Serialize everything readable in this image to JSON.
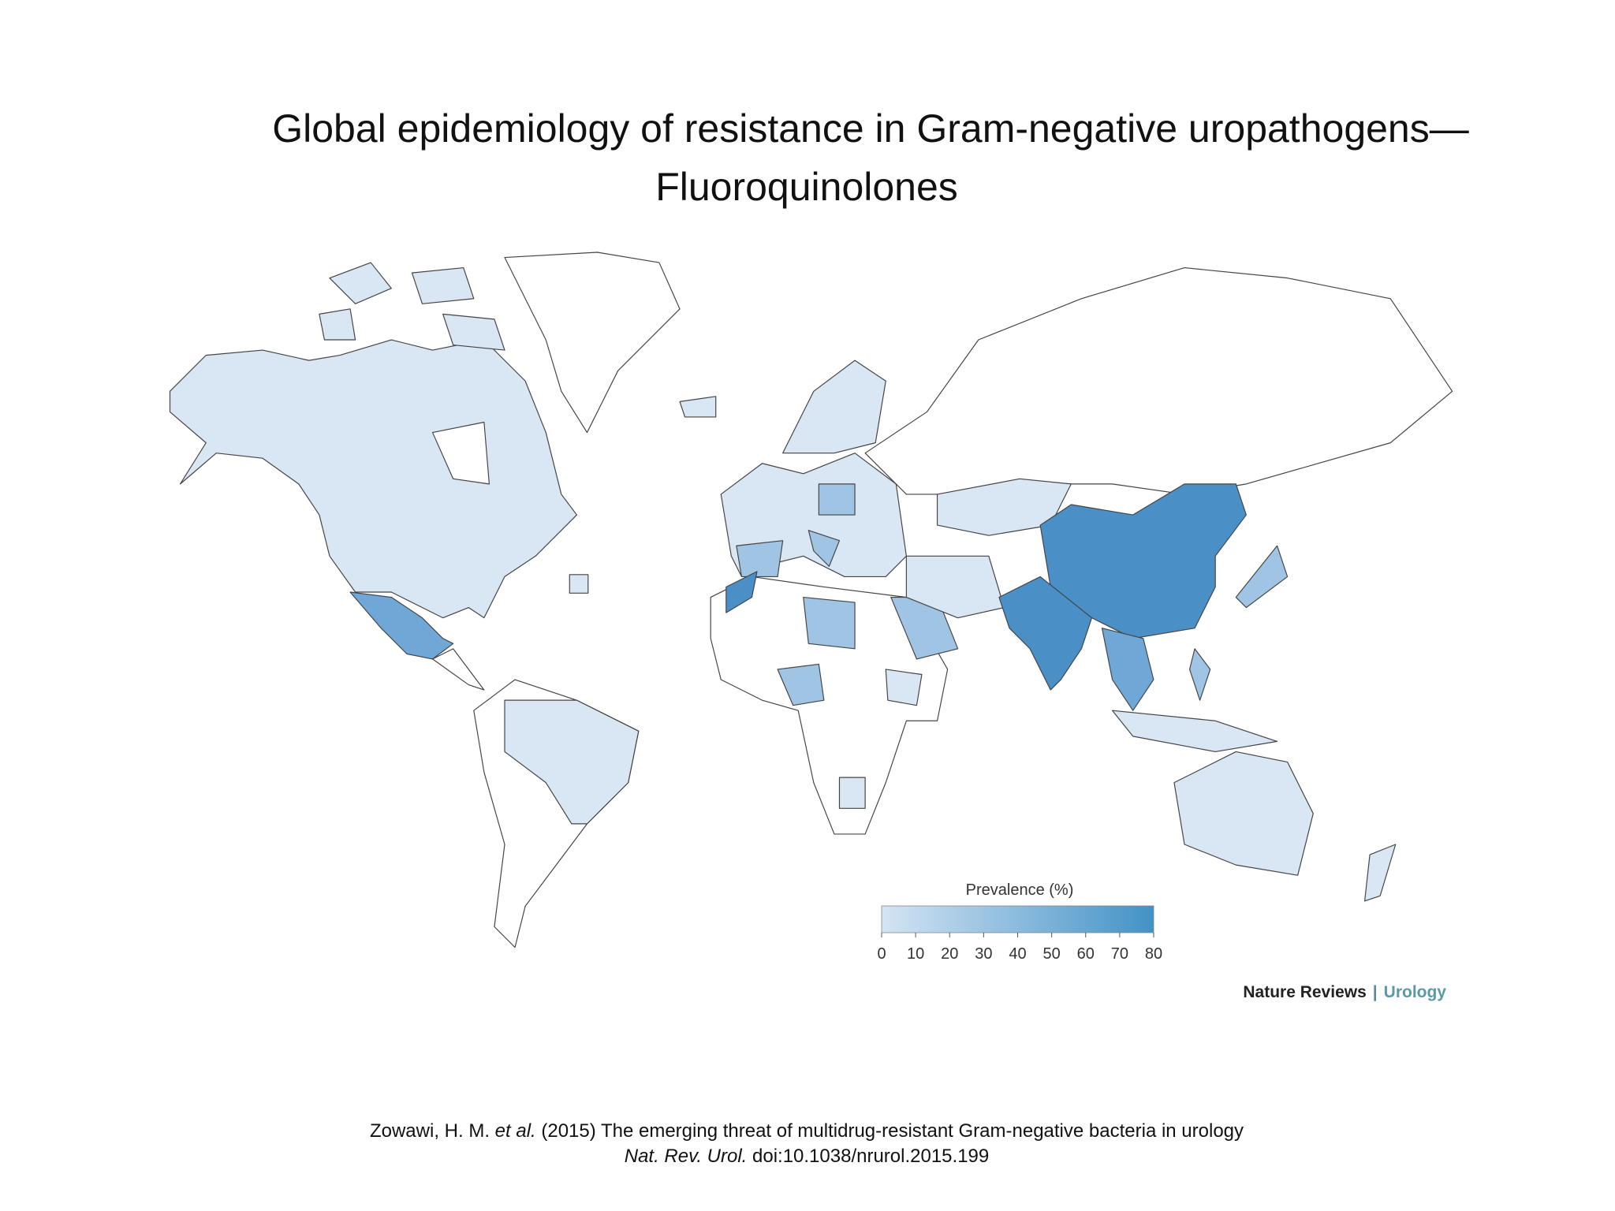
{
  "title": [
    "Global epidemiology of resistance in Gram-negative uropathogens—",
    "Fluoroquinolones"
  ],
  "legend": {
    "title": "Prevalence (%)",
    "range": [
      0,
      80
    ],
    "ticks": [
      0,
      10,
      20,
      30,
      40,
      50,
      60,
      70,
      80
    ],
    "colors": [
      "#d4e4f4",
      "#4292c6"
    ]
  },
  "brand": {
    "journal": "Nature Reviews",
    "separator": "|",
    "section": "Urology"
  },
  "citation": {
    "authors": "Zowawi, H. M. ",
    "etal": "et al.",
    "rest": " (2015) The emerging threat of multidrug-resistant Gram-negative bacteria in urology",
    "journal": "Nat. Rev. Urol.",
    "doi": " doi:10.1038/nrurol.2015.199"
  }
}
